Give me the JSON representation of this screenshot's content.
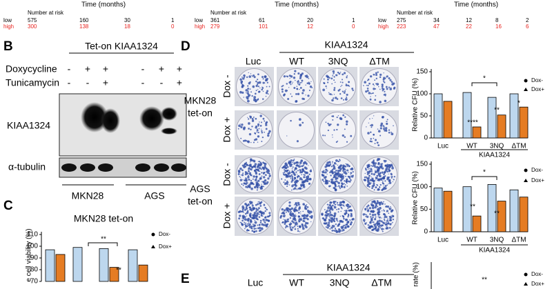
{
  "risk_tables": [
    {
      "title": "Time (months)",
      "header": "Number at risk",
      "rows": [
        {
          "label": "low",
          "values": [
            "575",
            "160",
            "30",
            "1"
          ]
        },
        {
          "label": "high",
          "values": [
            "300",
            "138",
            "18",
            "0"
          ]
        }
      ]
    },
    {
      "title": "Time (months)",
      "header": "Number at risk",
      "rows": [
        {
          "label": "low",
          "values": [
            "361",
            "61",
            "20",
            "1"
          ]
        },
        {
          "label": "high",
          "values": [
            "279",
            "101",
            "12",
            "0"
          ]
        }
      ]
    },
    {
      "title": "Time (months)",
      "header": "Number at risk",
      "rows": [
        {
          "label": "low",
          "values": [
            "275",
            "34",
            "12",
            "8",
            "2"
          ]
        },
        {
          "label": "high",
          "values": [
            "223",
            "47",
            "22",
            "16",
            "6"
          ]
        }
      ]
    }
  ],
  "panel_b": {
    "letter": "B",
    "title": "Tet-on KIAA1324",
    "treatments": [
      {
        "label": "Doxycycline",
        "signs": [
          "-",
          "+",
          "+",
          "-",
          "+",
          "+"
        ]
      },
      {
        "label": "Tunicamycin",
        "signs": [
          "-",
          "-",
          "+",
          "-",
          "-",
          "+"
        ]
      }
    ],
    "blots": [
      "KIAA1324",
      "α-tubulin"
    ],
    "cell_lines": [
      "MKN28",
      "AGS"
    ]
  },
  "panel_c": {
    "letter": "C"
  },
  "panel_d": {
    "letter": "D",
    "group_label": "KIAA1324",
    "columns": [
      "Luc",
      "WT",
      "3NQ",
      "ΔTM"
    ],
    "cell_lines": [
      {
        "label": [
          "MKN28",
          "tet-on"
        ],
        "rows": [
          "Dox -",
          "Dox +"
        ]
      },
      {
        "label": [
          "AGS",
          "tet-on"
        ],
        "rows": [
          "Dox -",
          "Dox +"
        ]
      }
    ]
  },
  "panel_e": {
    "letter": "E",
    "group_label": "KIAA1324",
    "columns": [
      "Luc",
      "WT",
      "3NQ",
      "ΔTM"
    ],
    "ylabel": "rate (%)",
    "annotation": "**",
    "legend": [
      "Dox-",
      "Dox+"
    ]
  },
  "chart_data": [
    {
      "type": "bar",
      "title": "MKN28 tet-on",
      "ylabel": "e cell viability (%)",
      "series": [
        {
          "name": "Dox-",
          "color": "#bdd7ee",
          "values": [
            97,
            99,
            98,
            97
          ]
        },
        {
          "name": "Dox+",
          "color": "#e57c23",
          "values": [
            93,
            null,
            82,
            84
          ]
        }
      ],
      "ylim": [
        70,
        110
      ],
      "yticks": [
        70,
        80,
        90,
        100,
        110
      ],
      "annotations": [
        "**",
        "**"
      ]
    },
    {
      "type": "bar",
      "ylabel": "Relative CFU (%)",
      "categories": [
        "Luc",
        "WT",
        "3NQ",
        "ΔTM"
      ],
      "group_label": "KIAA1324",
      "series": [
        {
          "name": "Dox-",
          "color": "#bdd7ee",
          "values": [
            100,
            103,
            92,
            100
          ]
        },
        {
          "name": "Dox+",
          "color": "#e57c23",
          "values": [
            83,
            25,
            52,
            70
          ]
        }
      ],
      "ylim": [
        0,
        150
      ],
      "yticks": [
        0,
        50,
        100,
        150
      ],
      "annotations": [
        "****",
        "**",
        "*",
        "*"
      ]
    },
    {
      "type": "bar",
      "ylabel": "Relative CFU (%)",
      "categories": [
        "Luc",
        "WT",
        "3NQ",
        "ΔTM"
      ],
      "group_label": "KIAA1324",
      "series": [
        {
          "name": "Dox-",
          "color": "#bdd7ee",
          "values": [
            97,
            100,
            105,
            93
          ]
        },
        {
          "name": "Dox+",
          "color": "#e57c23",
          "values": [
            90,
            35,
            68,
            77
          ]
        }
      ],
      "ylim": [
        0,
        150
      ],
      "yticks": [
        0,
        50,
        100,
        150
      ],
      "annotations": [
        "**",
        "**",
        "*"
      ]
    }
  ]
}
